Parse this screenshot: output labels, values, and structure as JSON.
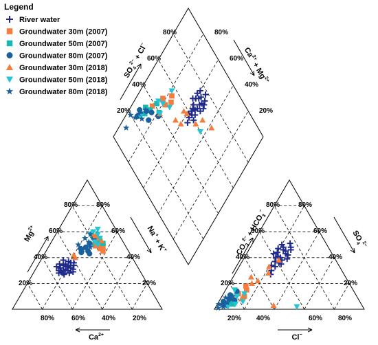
{
  "chart_data": {
    "type": "scatter",
    "subtype": "piper-diagram",
    "legend": {
      "title": "Legend",
      "placement": "top-left",
      "entries": [
        {
          "name": "River water",
          "color": "#1f2a8c",
          "marker": "plus"
        },
        {
          "name": "Groundwater 30m (2007)",
          "color": "#f47c3c",
          "marker": "square"
        },
        {
          "name": "Groundwater 50m (2007)",
          "color": "#19b8b0",
          "marker": "square"
        },
        {
          "name": "Groundwater 80m (2007)",
          "color": "#1a5f9e",
          "marker": "circle"
        },
        {
          "name": "Groundwater 30m (2018)",
          "color": "#f47c3c",
          "marker": "triangle-up"
        },
        {
          "name": "Groundwater 50m (2018)",
          "color": "#22c4d6",
          "marker": "triangle-down"
        },
        {
          "name": "Groundwater 80m (2018)",
          "color": "#1a5f9e",
          "marker": "star"
        }
      ]
    },
    "cation_triangle": {
      "bottom_axis": {
        "label": "Ca",
        "label_sup": "2+",
        "ticks": [
          "80%",
          "60%",
          "40%",
          "20%"
        ]
      },
      "left_axis": {
        "label": "Mg",
        "label_sup": "2+",
        "ticks": [
          "20%",
          "40%",
          "60%",
          "80%"
        ]
      },
      "right_axis": {
        "label": "Na",
        "label_sup": "+",
        "label2": " + K",
        "label2_sup": "+",
        "ticks": [
          "20%",
          "40%",
          "60%",
          "80%"
        ]
      },
      "series": [
        {
          "name": "River water",
          "points": [
            [
              22,
              30
            ],
            [
              20,
              33
            ],
            [
              18,
              35
            ],
            [
              24,
              28
            ],
            [
              16,
              32
            ],
            [
              21,
              36
            ],
            [
              19,
              30
            ],
            [
              23,
              32
            ],
            [
              17,
              34
            ],
            [
              20,
              28
            ],
            [
              15,
              38
            ],
            [
              22,
              34
            ],
            [
              18,
              29
            ],
            [
              25,
              31
            ],
            [
              14,
              35
            ],
            [
              19,
              37
            ],
            [
              21,
              27
            ],
            [
              16,
              30
            ],
            [
              24,
              34
            ],
            [
              20,
              31
            ],
            [
              17,
              28
            ],
            [
              23,
              36
            ],
            [
              13,
              33
            ],
            [
              26,
              29
            ]
          ]
        },
        {
          "name": "Groundwater 30m (2007)",
          "points": [
            [
              35,
              47
            ],
            [
              32,
              50
            ],
            [
              38,
              45
            ],
            [
              30,
              52
            ],
            [
              36,
              49
            ]
          ]
        },
        {
          "name": "Groundwater 50m (2007)",
          "points": [
            [
              32,
              53
            ],
            [
              28,
              55
            ],
            [
              35,
              51
            ],
            [
              30,
              50
            ],
            [
              26,
              56
            ]
          ]
        },
        {
          "name": "Groundwater 80m (2007)",
          "points": [
            [
              28,
              45
            ],
            [
              25,
              48
            ],
            [
              30,
              43
            ],
            [
              26,
              51
            ],
            [
              22,
              47
            ],
            [
              27,
              55
            ],
            [
              24,
              44
            ]
          ]
        },
        {
          "name": "Groundwater 30m (2018)",
          "points": [
            [
              30,
              55
            ],
            [
              27,
              57
            ],
            [
              33,
              53
            ],
            [
              25,
              58
            ],
            [
              29,
              52
            ],
            [
              20,
              42
            ],
            [
              22,
              40
            ],
            [
              31,
              49
            ]
          ]
        },
        {
          "name": "Groundwater 50m (2018)",
          "points": [
            [
              28,
              58
            ],
            [
              24,
              60
            ],
            [
              31,
              55
            ],
            [
              26,
              62
            ],
            [
              29,
              52
            ],
            [
              32,
              50
            ],
            [
              23,
              58
            ]
          ]
        },
        {
          "name": "Groundwater 80m (2018)",
          "points": [
            [
              25,
              52
            ],
            [
              21,
              55
            ],
            [
              28,
              48
            ],
            [
              23,
              58
            ],
            [
              27,
              50
            ],
            [
              19,
              50
            ],
            [
              24,
              46
            ]
          ]
        }
      ]
    },
    "anion_triangle": {
      "bottom_axis": {
        "label": "Cl",
        "label_sup": "−",
        "ticks": [
          "20%",
          "40%",
          "60%",
          "80%"
        ]
      },
      "left_axis": {
        "label": "CO",
        "label_sub": "3",
        "label_sup": "2−",
        "label2": " + HCO",
        "label2_sub": "3",
        "label2_sup": "−",
        "ticks": [
          "20%",
          "40%",
          "60%",
          "80%"
        ]
      },
      "right_axis": {
        "label": "SO",
        "label_sub": "4",
        "label_sup": "2−",
        "ticks": [
          "20%",
          "40%",
          "60%",
          "80%"
        ]
      },
      "series": [
        {
          "name": "River water",
          "points": [
            [
              25,
              45
            ],
            [
              22,
              48
            ],
            [
              28,
              42
            ],
            [
              24,
              40
            ],
            [
              20,
              44
            ],
            [
              26,
              38
            ],
            [
              23,
              46
            ],
            [
              27,
              35
            ],
            [
              21,
              40
            ],
            [
              25,
              36
            ],
            [
              19,
              47
            ],
            [
              24,
              33
            ],
            [
              29,
              39
            ],
            [
              22,
              37
            ],
            [
              20,
              50
            ],
            [
              26,
              43
            ],
            [
              18,
              43
            ],
            [
              23,
              30
            ],
            [
              27,
              48
            ],
            [
              21,
              34
            ],
            [
              25,
              51
            ],
            [
              24,
              27
            ],
            [
              28,
              46
            ],
            [
              22,
              41
            ]
          ]
        },
        {
          "name": "Groundwater 30m (2007)",
          "points": [
            [
              12,
              18
            ],
            [
              10,
              12
            ],
            [
              15,
              10
            ],
            [
              8,
              8
            ],
            [
              14,
              15
            ]
          ]
        },
        {
          "name": "Groundwater 50m (2007)",
          "points": [
            [
              8,
              6
            ],
            [
              6,
              10
            ],
            [
              10,
              4
            ],
            [
              5,
              5
            ],
            [
              9,
              12
            ]
          ]
        },
        {
          "name": "Groundwater 80m (2007)",
          "points": [
            [
              6,
              8
            ],
            [
              4,
              4
            ],
            [
              8,
              14
            ],
            [
              5,
              11
            ],
            [
              7,
              3
            ],
            [
              10,
              7
            ],
            [
              3,
              6
            ]
          ]
        },
        {
          "name": "Groundwater 30m (2018)",
          "points": [
            [
              18,
              22
            ],
            [
              22,
              28
            ],
            [
              15,
              20
            ],
            [
              14,
              8
            ],
            [
              20,
              33
            ],
            [
              12,
              25
            ],
            [
              38,
              3
            ],
            [
              24,
              38
            ]
          ]
        },
        {
          "name": "Groundwater 50m (2018)",
          "points": [
            [
              10,
              10
            ],
            [
              12,
              4
            ],
            [
              8,
              2
            ],
            [
              14,
              12
            ],
            [
              54,
              2
            ],
            [
              16,
              6
            ],
            [
              6,
              15
            ]
          ]
        },
        {
          "name": "Groundwater 80m (2018)",
          "points": [
            [
              4,
              3
            ],
            [
              2,
              1
            ],
            [
              6,
              5
            ],
            [
              3,
              9
            ],
            [
              5,
              2
            ],
            [
              1,
              4
            ],
            [
              7,
              10
            ]
          ]
        }
      ]
    },
    "diamond": {
      "upper_left_axis": {
        "label": "SO",
        "label_sub": "4",
        "label_sup": "2−",
        "label2": " + Cl",
        "label2_sup": "−",
        "ticks": [
          "20%",
          "40%",
          "60%",
          "80%"
        ]
      },
      "upper_right_axis": {
        "label": "Ca",
        "label_sup": "2+",
        "label2": " + Mg",
        "label2_sup": "2+",
        "ticks": [
          "20%",
          "40%",
          "60%",
          "80%"
        ]
      },
      "series": [
        {
          "name": "River water",
          "points": [
            [
              45,
              70
            ],
            [
              42,
              72
            ],
            [
              48,
              68
            ],
            [
              44,
              65
            ],
            [
              40,
              70
            ],
            [
              46,
              63
            ],
            [
              43,
              74
            ],
            [
              47,
              60
            ],
            [
              41,
              66
            ],
            [
              45,
              67
            ],
            [
              39,
              73
            ],
            [
              44,
              61
            ],
            [
              49,
              71
            ],
            [
              42,
              62
            ],
            [
              40,
              76
            ],
            [
              46,
              72
            ],
            [
              38,
              68
            ],
            [
              43,
              58
            ],
            [
              47,
              75
            ],
            [
              41,
              59
            ],
            [
              45,
              78
            ],
            [
              44,
              55
            ],
            [
              48,
              73
            ],
            [
              42,
              64
            ]
          ]
        },
        {
          "name": "Groundwater 30m (2007)",
          "points": [
            [
              23,
              55
            ],
            [
              18,
              48
            ],
            [
              22,
              47
            ],
            [
              14,
              38
            ],
            [
              25,
              52
            ]
          ]
        },
        {
          "name": "Groundwater 50m (2007)",
          "points": [
            [
              14,
              35
            ],
            [
              16,
              42
            ],
            [
              12,
              30
            ],
            [
              10,
              33
            ],
            [
              21,
              40
            ]
          ]
        },
        {
          "name": "Groundwater 80m (2007)",
          "points": [
            [
              12,
              32
            ],
            [
              7,
              28
            ],
            [
              22,
              38
            ],
            [
              16,
              35
            ],
            [
              8,
              24
            ],
            [
              17,
              30
            ],
            [
              9,
              27
            ]
          ]
        },
        {
          "name": "Groundwater 30m (2018)",
          "points": [
            [
              40,
              58
            ],
            [
              50,
              60
            ],
            [
              35,
              48
            ],
            [
              22,
              40
            ],
            [
              53,
              66
            ],
            [
              37,
              57
            ],
            [
              40,
              50
            ],
            [
              62,
              69
            ]
          ]
        },
        {
          "name": "Groundwater 50m (2018)",
          "points": [
            [
              20,
              46
            ],
            [
              16,
              44
            ],
            [
              10,
              26
            ],
            [
              26,
              49
            ],
            [
              56,
              60
            ],
            [
              22,
              40
            ],
            [
              21,
              57
            ]
          ]
        },
        {
          "name": "Groundwater 80m (2018)",
          "points": [
            [
              8,
              26
            ],
            [
              3,
              20
            ],
            [
              11,
              32
            ],
            [
              12,
              26
            ],
            [
              7,
              22
            ],
            [
              5,
              12
            ],
            [
              17,
              30
            ]
          ]
        }
      ]
    }
  }
}
